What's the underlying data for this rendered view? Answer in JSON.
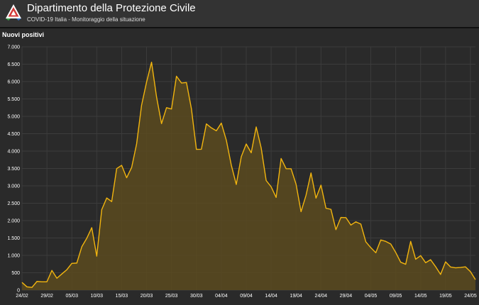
{
  "header": {
    "title": "Dipartimento della Protezione Civile",
    "subtitle": "COVID-19 Italia - Monitoraggio della situazione",
    "logo_icon": "protezione-civile-logo-icon"
  },
  "panel": {
    "title": "Nuovi positivi"
  },
  "colors": {
    "line": "#f2b50f",
    "fill": "#5a4a1f",
    "grid": "#3c3c3c",
    "background": "#2a2a2a",
    "tick_text": "#ffffff"
  },
  "chart_data": {
    "type": "area",
    "title": "Nuovi positivi",
    "xlabel": "",
    "ylabel": "",
    "ylim": [
      0,
      7000
    ],
    "y_ticks": [
      0,
      500,
      1000,
      1500,
      2000,
      2500,
      3000,
      3500,
      4000,
      4500,
      5000,
      5500,
      6000,
      6500,
      7000
    ],
    "y_tick_labels": [
      "0",
      "500",
      "1.000",
      "1.500",
      "2.000",
      "2.500",
      "3.000",
      "3.500",
      "4.000",
      "4.500",
      "5.000",
      "5.500",
      "6.000",
      "6.500",
      "7.000"
    ],
    "x_tick_labels": [
      "24/02",
      "29/02",
      "05/03",
      "10/03",
      "15/03",
      "20/03",
      "25/03",
      "30/03",
      "04/04",
      "09/04",
      "14/04",
      "19/04",
      "24/04",
      "29/04",
      "04/05",
      "09/05",
      "14/05",
      "19/05",
      "24/05"
    ],
    "grid": true,
    "legend": "none",
    "start_date": "24/02",
    "x_tick_every": 5,
    "series": [
      {
        "name": "Nuovi positivi",
        "values": [
          221,
          93,
          78,
          250,
          238,
          240,
          566,
          342,
          466,
          587,
          769,
          778,
          1247,
          1492,
          1797,
          977,
          2313,
          2651,
          2547,
          3497,
          3590,
          3233,
          3526,
          4207,
          5322,
          5986,
          6557,
          5560,
          4789,
          5249,
          5210,
          6153,
          5959,
          5974,
          5217,
          4050,
          4053,
          4782,
          4668,
          4585,
          4805,
          4316,
          3599,
          3039,
          3836,
          4204,
          3951,
          4694,
          4092,
          3153,
          2972,
          2667,
          3786,
          3493,
          3491,
          3047,
          2256,
          2729,
          3370,
          2646,
          3021,
          2357,
          2324,
          1739,
          2091,
          2086,
          1872,
          1965,
          1900,
          1389,
          1221,
          1075,
          1444,
          1401,
          1327,
          1083,
          802,
          744,
          1402,
          888,
          992,
          789,
          875,
          675,
          451,
          813,
          665,
          642,
          652,
          669,
          531,
          300
        ]
      }
    ]
  }
}
